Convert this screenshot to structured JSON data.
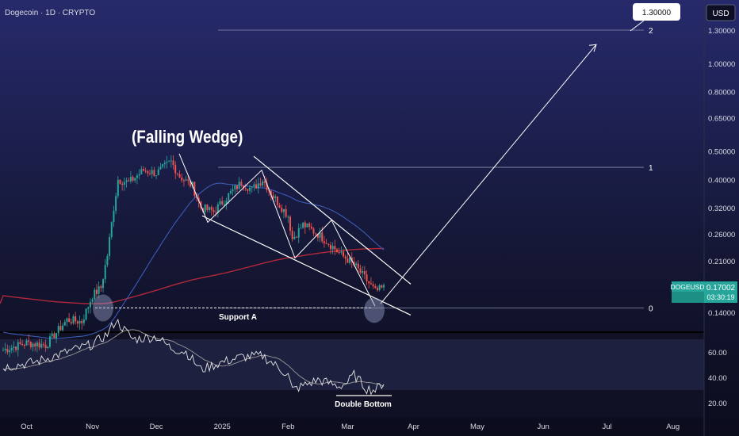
{
  "header": {
    "symbol_line": "Dogecoin · 1D · CRYPTO",
    "currency": "USD"
  },
  "annotations": {
    "title": "(Falling Wedge)",
    "support": "Support A",
    "double_bottom": "Double Bottom",
    "target_value": "1.30000",
    "fib_levels": [
      {
        "label": "2",
        "price": 1.3
      },
      {
        "label": "1",
        "price": 0.44
      },
      {
        "label": "0",
        "price": 0.145
      }
    ]
  },
  "price_tag": {
    "ticker": "DOGEUSD",
    "price": "0.17002",
    "countdown": "03:30:19"
  },
  "colors": {
    "up": "#26a69a",
    "down": "#ef5350",
    "ma_fast": "#3b5bb5",
    "ma_slow": "#b2283b",
    "rsi": "#e6e6e6",
    "rsi_ma": "#9a9a9a",
    "tag": "#26a69a"
  },
  "chart_data": {
    "type": "line",
    "scale": "log",
    "price_axis_ticks": [
      "1.30000",
      "1.00000",
      "0.80000",
      "0.65000",
      "0.50000",
      "0.40000",
      "0.32000",
      "0.26000",
      "0.21000",
      "0.14000"
    ],
    "time_axis_ticks": [
      "Oct",
      "Nov",
      "Dec",
      "2025",
      "Feb",
      "Mar",
      "Apr",
      "May",
      "Jun",
      "Jul",
      "Aug"
    ],
    "rsi_ticks": [
      "60.00",
      "40.00",
      "20.00"
    ],
    "price_series": {
      "x": [
        "2024-09-20",
        "2024-10-01",
        "2024-10-10",
        "2024-10-20",
        "2024-10-27",
        "2024-11-01",
        "2024-11-05",
        "2024-11-08",
        "2024-11-11",
        "2024-11-13",
        "2024-11-18",
        "2024-11-25",
        "2024-12-01",
        "2024-12-08",
        "2024-12-12",
        "2024-12-18",
        "2024-12-22",
        "2024-12-28",
        "2025-01-05",
        "2025-01-10",
        "2025-01-15",
        "2025-01-20",
        "2025-01-25",
        "2025-02-01",
        "2025-02-03",
        "2025-02-08",
        "2025-02-15",
        "2025-02-22",
        "2025-02-26",
        "2025-03-02",
        "2025-03-05",
        "2025-03-10",
        "2025-03-14",
        "2025-03-18"
      ],
      "close": [
        0.104,
        0.11,
        0.108,
        0.132,
        0.13,
        0.16,
        0.17,
        0.22,
        0.32,
        0.4,
        0.39,
        0.43,
        0.42,
        0.46,
        0.41,
        0.38,
        0.32,
        0.31,
        0.36,
        0.39,
        0.37,
        0.4,
        0.35,
        0.3,
        0.25,
        0.28,
        0.26,
        0.235,
        0.22,
        0.21,
        0.2,
        0.18,
        0.165,
        0.17
      ]
    },
    "rsi_series": {
      "x": [
        "2024-09-20",
        "2024-10-05",
        "2024-10-20",
        "2024-11-01",
        "2024-11-08",
        "2024-11-12",
        "2024-11-20",
        "2024-12-01",
        "2024-12-08",
        "2024-12-15",
        "2024-12-22",
        "2025-01-01",
        "2025-01-10",
        "2025-01-20",
        "2025-02-01",
        "2025-02-03",
        "2025-02-15",
        "2025-02-25",
        "2025-03-01",
        "2025-03-04",
        "2025-03-10",
        "2025-03-14",
        "2025-03-18"
      ],
      "values": [
        48,
        52,
        60,
        66,
        74,
        85,
        70,
        72,
        63,
        60,
        46,
        52,
        56,
        57,
        42,
        30,
        38,
        33,
        36,
        42,
        31,
        30,
        36
      ]
    },
    "support_level": 0.145,
    "target_price": 1.3,
    "xlim": [
      "2024-09-20",
      "2025-08-31"
    ],
    "ylim": [
      0.125,
      1.5
    ]
  }
}
